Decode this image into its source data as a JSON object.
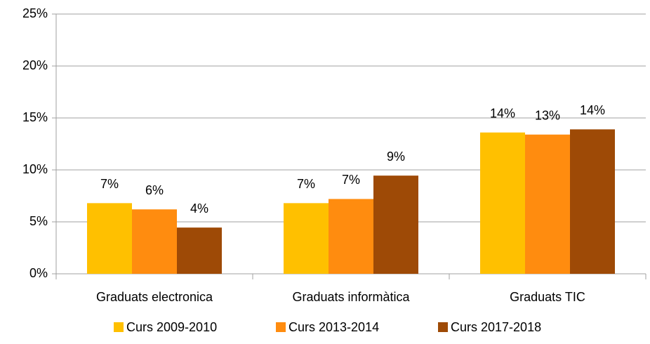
{
  "chart_data": {
    "type": "bar",
    "categories": [
      "Graduats electronica",
      "Graduats informàtica",
      "Graduats TIC"
    ],
    "series": [
      {
        "name": "Curs 2009-2010",
        "color": "#FFC000",
        "values": [
          6.8,
          6.8,
          13.6
        ],
        "value_labels": [
          "7%",
          "7%",
          "14%"
        ]
      },
      {
        "name": "Curs 2013-2014",
        "color": "#FF8C0F",
        "values": [
          6.2,
          7.2,
          13.4
        ],
        "value_labels": [
          "6%",
          "7%",
          "13%"
        ]
      },
      {
        "name": "Curs 2017-2018",
        "color": "#9E4A06",
        "values": [
          4.45,
          9.45,
          13.9
        ],
        "value_labels": [
          "4%",
          "9%",
          "14%"
        ]
      }
    ],
    "ylim": [
      0,
      25
    ],
    "yticks": [
      {
        "value": 0,
        "label": "0%"
      },
      {
        "value": 5,
        "label": "5%"
      },
      {
        "value": 10,
        "label": "10%"
      },
      {
        "value": 15,
        "label": "15%"
      },
      {
        "value": 20,
        "label": "20%"
      },
      {
        "value": 25,
        "label": "25%"
      }
    ],
    "grid": true,
    "legend": "bottom"
  }
}
